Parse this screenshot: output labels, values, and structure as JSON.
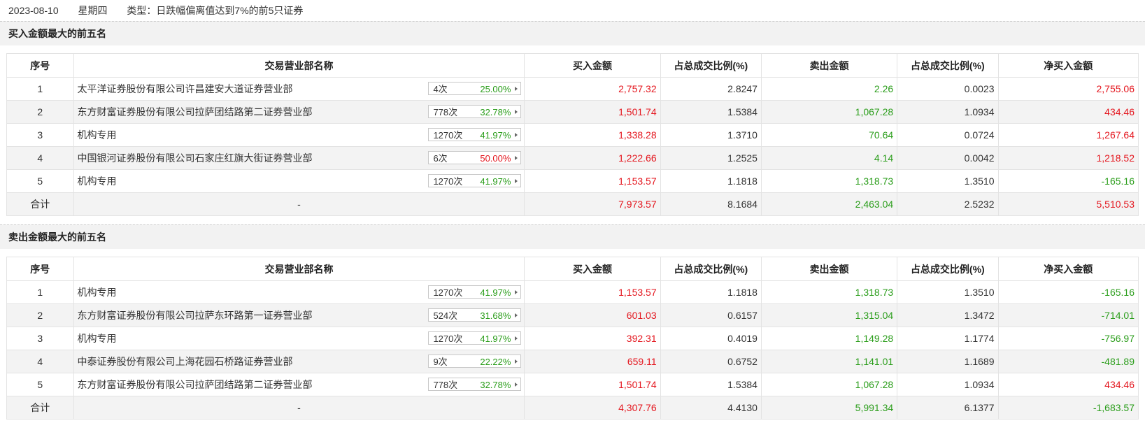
{
  "header": {
    "date": "2023-08-10",
    "weekday": "星期四",
    "type_label": "类型：日跌幅偏离值达到7%的前5只证券"
  },
  "columns": [
    "序号",
    "交易营业部名称",
    "买入金额",
    "占总成交比例(%)",
    "卖出金额",
    "占总成交比例(%)",
    "净买入金额"
  ],
  "buy_section": {
    "title": "买入金额最大的前五名",
    "rows": [
      {
        "no": "1",
        "name": "太平洋证券股份有限公司许昌建安大道证券营业部",
        "count": "4次",
        "pct": "25.00%",
        "buy": "2,757.32",
        "buy_ratio": "2.8247",
        "sell": "2.26",
        "sell_ratio": "0.0023",
        "net": "2,755.06"
      },
      {
        "no": "2",
        "name": "东方财富证券股份有限公司拉萨团结路第二证券营业部",
        "count": "778次",
        "pct": "32.78%",
        "buy": "1,501.74",
        "buy_ratio": "1.5384",
        "sell": "1,067.28",
        "sell_ratio": "1.0934",
        "net": "434.46"
      },
      {
        "no": "3",
        "name": "机构专用",
        "count": "1270次",
        "pct": "41.97%",
        "buy": "1,338.28",
        "buy_ratio": "1.3710",
        "sell": "70.64",
        "sell_ratio": "0.0724",
        "net": "1,267.64"
      },
      {
        "no": "4",
        "name": "中国银河证券股份有限公司石家庄红旗大街证券营业部",
        "count": "6次",
        "pct": "50.00%",
        "buy": "1,222.66",
        "buy_ratio": "1.2525",
        "sell": "4.14",
        "sell_ratio": "0.0042",
        "net": "1,218.52"
      },
      {
        "no": "5",
        "name": "机构专用",
        "count": "1270次",
        "pct": "41.97%",
        "buy": "1,153.57",
        "buy_ratio": "1.1818",
        "sell": "1,318.73",
        "sell_ratio": "1.3510",
        "net": "-165.16"
      }
    ],
    "total": {
      "label": "合计",
      "name": "-",
      "buy": "7,973.57",
      "buy_ratio": "8.1684",
      "sell": "2,463.04",
      "sell_ratio": "2.5232",
      "net": "5,510.53"
    }
  },
  "sell_section": {
    "title": "卖出金额最大的前五名",
    "rows": [
      {
        "no": "1",
        "name": "机构专用",
        "count": "1270次",
        "pct": "41.97%",
        "buy": "1,153.57",
        "buy_ratio": "1.1818",
        "sell": "1,318.73",
        "sell_ratio": "1.3510",
        "net": "-165.16"
      },
      {
        "no": "2",
        "name": "东方财富证券股份有限公司拉萨东环路第一证券营业部",
        "count": "524次",
        "pct": "31.68%",
        "buy": "601.03",
        "buy_ratio": "0.6157",
        "sell": "1,315.04",
        "sell_ratio": "1.3472",
        "net": "-714.01"
      },
      {
        "no": "3",
        "name": "机构专用",
        "count": "1270次",
        "pct": "41.97%",
        "buy": "392.31",
        "buy_ratio": "0.4019",
        "sell": "1,149.28",
        "sell_ratio": "1.1774",
        "net": "-756.97"
      },
      {
        "no": "4",
        "name": "中泰证券股份有限公司上海花园石桥路证券营业部",
        "count": "9次",
        "pct": "22.22%",
        "buy": "659.11",
        "buy_ratio": "0.6752",
        "sell": "1,141.01",
        "sell_ratio": "1.1689",
        "net": "-481.89"
      },
      {
        "no": "5",
        "name": "东方财富证券股份有限公司拉萨团结路第二证券营业部",
        "count": "778次",
        "pct": "32.78%",
        "buy": "1,501.74",
        "buy_ratio": "1.5384",
        "sell": "1,067.28",
        "sell_ratio": "1.0934",
        "net": "434.46"
      }
    ],
    "total": {
      "label": "合计",
      "name": "-",
      "buy": "4,307.76",
      "buy_ratio": "4.4130",
      "sell": "5,991.34",
      "sell_ratio": "6.1377",
      "net": "-1,683.57"
    }
  },
  "colors": {
    "up": "#e4161e",
    "down": "#2a9d1a"
  }
}
